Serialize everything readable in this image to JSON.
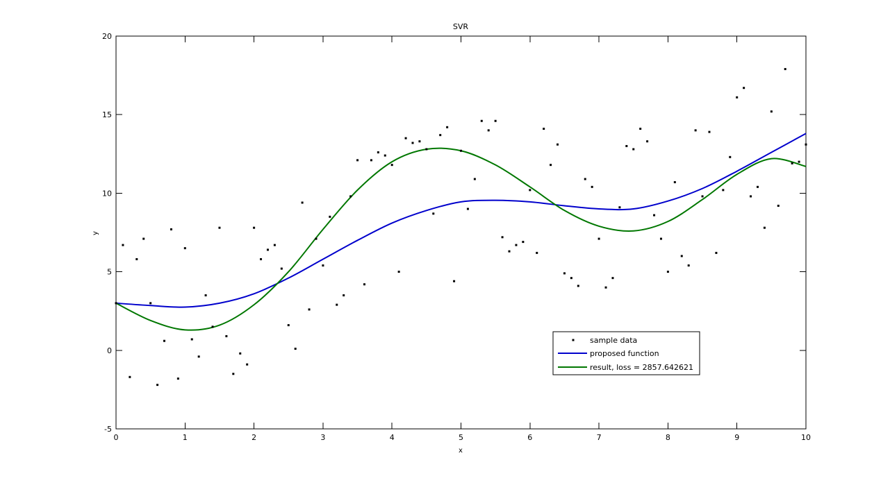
{
  "chart_data": {
    "type": "scatter",
    "title": "SVR",
    "xlabel": "x",
    "ylabel": "y",
    "xlim": [
      0,
      10
    ],
    "ylim": [
      -5,
      20
    ],
    "xticks": [
      0,
      1,
      2,
      3,
      4,
      5,
      6,
      7,
      8,
      9,
      10
    ],
    "yticks": [
      -5,
      0,
      5,
      10,
      15,
      20
    ],
    "grid": false,
    "legend_position": "lower-right",
    "series": [
      {
        "name": "sample data",
        "kind": "markers",
        "color": "#000000",
        "x": [
          0.0,
          0.1,
          0.2,
          0.3,
          0.4,
          0.5,
          0.6,
          0.7,
          0.8,
          0.9,
          1.0,
          1.1,
          1.2,
          1.3,
          1.4,
          1.5,
          1.6,
          1.7,
          1.8,
          1.9,
          2.0,
          2.1,
          2.2,
          2.3,
          2.4,
          2.5,
          2.6,
          2.7,
          2.8,
          2.9,
          3.0,
          3.1,
          3.2,
          3.3,
          3.4,
          3.5,
          3.6,
          3.7,
          3.8,
          3.9,
          4.0,
          4.1,
          4.2,
          4.3,
          4.4,
          4.5,
          4.6,
          4.7,
          4.8,
          4.9,
          5.0,
          5.1,
          5.2,
          5.3,
          5.4,
          5.5,
          5.6,
          5.7,
          5.8,
          5.9,
          6.0,
          6.1,
          6.2,
          6.3,
          6.4,
          6.5,
          6.6,
          6.7,
          6.8,
          6.9,
          7.0,
          7.1,
          7.2,
          7.3,
          7.4,
          7.5,
          7.6,
          7.7,
          7.8,
          7.9,
          8.0,
          8.1,
          8.2,
          8.3,
          8.4,
          8.5,
          8.6,
          8.7,
          8.8,
          8.9,
          9.0,
          9.1,
          9.2,
          9.3,
          9.4,
          9.5,
          9.6,
          9.7,
          9.8,
          9.9,
          10.0
        ],
        "y": [
          3.0,
          6.7,
          -1.7,
          5.8,
          7.1,
          3.0,
          -2.2,
          0.6,
          7.7,
          -1.8,
          6.5,
          0.7,
          -0.4,
          3.5,
          1.5,
          7.8,
          0.9,
          -1.5,
          -0.2,
          -0.9,
          7.8,
          5.8,
          6.4,
          6.7,
          5.2,
          1.6,
          0.1,
          9.4,
          2.6,
          7.1,
          5.4,
          8.5,
          2.9,
          3.5,
          9.8,
          12.1,
          4.2,
          12.1,
          12.6,
          12.4,
          11.8,
          5.0,
          13.5,
          13.2,
          13.3,
          12.8,
          8.7,
          13.7,
          14.2,
          4.4,
          12.7,
          9.0,
          10.9,
          14.6,
          14.0,
          14.6,
          7.2,
          6.3,
          6.7,
          6.9,
          10.2,
          6.2,
          14.1,
          11.8,
          13.1,
          4.9,
          4.6,
          4.1,
          10.9,
          10.4,
          7.1,
          4.0,
          4.6,
          9.1,
          13.0,
          12.8,
          14.1,
          13.3,
          8.6,
          7.1,
          5.0,
          10.7,
          6.0,
          5.4,
          14.0,
          9.8,
          13.9,
          6.2,
          10.2,
          12.3,
          16.1,
          16.7,
          9.8,
          10.4,
          7.8,
          15.2,
          9.2,
          17.9,
          11.9,
          12.0,
          13.1
        ]
      },
      {
        "name": "proposed function",
        "kind": "line",
        "color": "#0000cc",
        "x": [
          0,
          0.5,
          1.0,
          1.5,
          2.0,
          2.5,
          3.0,
          3.5,
          4.0,
          4.5,
          5.0,
          5.5,
          6.0,
          6.5,
          7.0,
          7.5,
          8.0,
          8.5,
          9.0,
          9.5,
          10.0
        ],
        "y": [
          3.0,
          2.85,
          2.75,
          3.0,
          3.6,
          4.6,
          5.8,
          7.0,
          8.1,
          8.9,
          9.45,
          9.55,
          9.45,
          9.2,
          9.0,
          9.0,
          9.5,
          10.3,
          11.4,
          12.6,
          13.8
        ]
      },
      {
        "name": "result, loss = 2857.642621",
        "kind": "line",
        "color": "#007700",
        "x": [
          0,
          0.5,
          1.0,
          1.5,
          2.0,
          2.5,
          3.0,
          3.5,
          4.0,
          4.5,
          5.0,
          5.5,
          6.0,
          6.5,
          7.0,
          7.5,
          8.0,
          8.5,
          9.0,
          9.5,
          10.0
        ],
        "y": [
          3.0,
          1.9,
          1.3,
          1.6,
          2.9,
          5.0,
          7.7,
          10.2,
          12.0,
          12.8,
          12.7,
          11.8,
          10.4,
          8.9,
          7.9,
          7.6,
          8.2,
          9.6,
          11.2,
          12.2,
          11.7
        ]
      }
    ]
  }
}
